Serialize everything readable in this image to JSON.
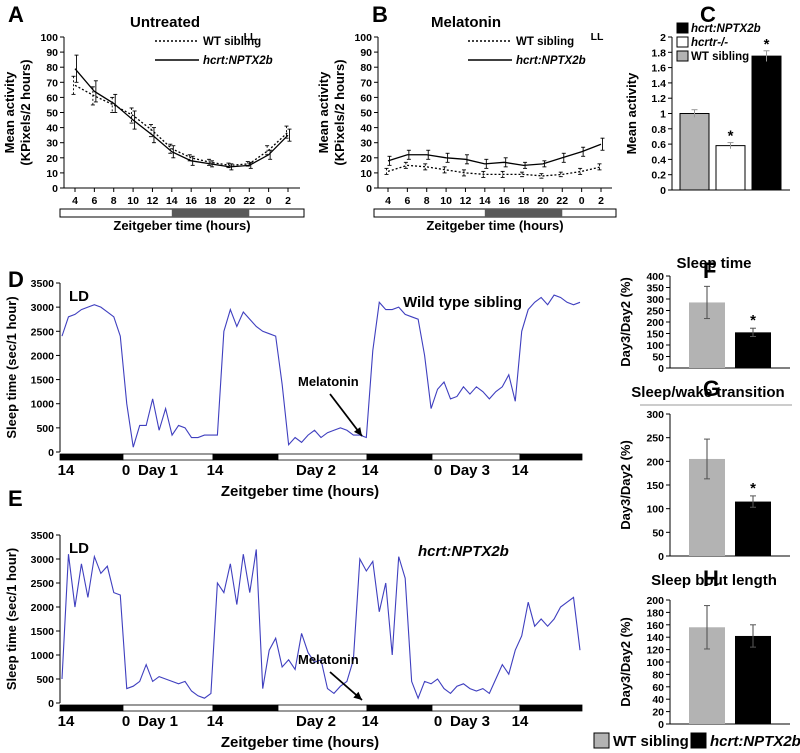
{
  "figure": {
    "panel_letters": [
      "A",
      "B",
      "C",
      "D",
      "E",
      "F",
      "G",
      "H"
    ],
    "bottom_legend": [
      {
        "label": "WT sibling",
        "color": "#b3b3b3"
      },
      {
        "label": "hcrt:NPTX2b",
        "color": "#000000"
      }
    ],
    "colors": {
      "wt_bar": "#b3b3b3",
      "mut_bar": "#000000",
      "trace": "#3f3fbf",
      "dark_bar": "#595959"
    }
  },
  "chart_data": [
    {
      "id": "A",
      "type": "line",
      "title": "Untreated",
      "condition": "LL",
      "xlabel": "Zeitgeber time (hours)",
      "ylabel": [
        "Mean activity",
        "(KPixels/2 hours)"
      ],
      "ylim": [
        0,
        100
      ],
      "yticks": [
        0,
        10,
        20,
        30,
        40,
        50,
        60,
        70,
        80,
        90,
        100
      ],
      "x": [
        "4",
        "6",
        "8",
        "10",
        "12",
        "14",
        "16",
        "18",
        "20",
        "22",
        "0",
        "2"
      ],
      "series": [
        {
          "name": "WT sibling",
          "style": "dotted",
          "values": [
            68,
            61,
            55,
            48,
            38,
            26,
            20,
            17,
            15,
            16,
            25,
            37
          ],
          "errors": [
            6,
            6,
            5,
            5,
            4,
            3,
            2,
            2,
            1.5,
            1.5,
            3,
            4
          ]
        },
        {
          "name": "hcrt:NPTX2b",
          "style": "solid",
          "values": [
            79,
            64,
            56,
            45,
            35,
            24,
            18,
            16,
            14,
            15,
            22,
            35
          ],
          "errors": [
            9,
            7,
            6,
            6,
            5,
            4,
            3,
            2,
            2,
            2,
            3,
            4
          ]
        }
      ],
      "shaded_interval": {
        "from": "14",
        "to": "22"
      }
    },
    {
      "id": "B",
      "type": "line",
      "title": "Melatonin",
      "condition": "LL",
      "xlabel": "Zeitgeber time (hours)",
      "ylabel": [
        "Mean activity",
        "(KPixels/2 hours)"
      ],
      "ylim": [
        0,
        100
      ],
      "yticks": [
        0,
        10,
        20,
        30,
        40,
        50,
        60,
        70,
        80,
        90,
        100
      ],
      "x": [
        "4",
        "6",
        "8",
        "10",
        "12",
        "14",
        "16",
        "18",
        "20",
        "22",
        "0",
        "2"
      ],
      "series": [
        {
          "name": "WT sibling",
          "style": "dotted",
          "values": [
            11,
            15,
            14,
            12,
            10,
            9,
            9,
            9,
            8,
            9,
            11,
            14
          ],
          "errors": [
            2,
            2,
            2,
            2,
            2,
            2,
            2,
            1.5,
            1.5,
            1.5,
            2,
            2
          ]
        },
        {
          "name": "hcrt:NPTX2b",
          "style": "solid",
          "values": [
            18,
            22,
            22,
            20,
            19,
            16,
            17,
            15,
            16,
            20,
            24,
            29
          ],
          "errors": [
            3,
            3,
            3,
            3,
            3,
            3,
            3,
            2,
            2,
            3,
            3,
            4
          ]
        }
      ],
      "shaded_interval": {
        "from": "14",
        "to": "22"
      }
    },
    {
      "id": "C",
      "type": "bar",
      "title": "",
      "ylabel": "Mean activity",
      "ylim": [
        0,
        2
      ],
      "yticks": [
        "0",
        "0.2",
        "0.4",
        "0.6",
        "0.8",
        "1",
        "1.2",
        "1.4",
        "1.6",
        "1.8",
        "2"
      ],
      "categories": [
        "WT sibling",
        "hcrtr-/-",
        "hcrt:NPTX2b"
      ],
      "values": [
        1.0,
        0.58,
        1.75
      ],
      "errors": [
        0.05,
        0.04,
        0.07
      ],
      "significant": [
        false,
        true,
        true
      ],
      "significance_label": "*",
      "colors": [
        "#b3b3b3",
        "#ffffff",
        "#000000"
      ],
      "legend_order": [
        "hcrt:NPTX2b",
        "hcrtr-/-",
        "WT sibling"
      ]
    },
    {
      "id": "D",
      "type": "line",
      "title": "Wild type sibling",
      "condition": "LD",
      "xlabel": "Zeitgeber time (hours)",
      "ylabel": "Sleep time (sec/1 hour)",
      "ylim": [
        0,
        3500
      ],
      "yticks": [
        0,
        500,
        1000,
        1500,
        2000,
        2500,
        3000,
        3500
      ],
      "xtick_labels": [
        "14",
        "0",
        "Day 1",
        "14",
        "Day 2",
        "14",
        "0",
        "Day 3",
        "14"
      ],
      "annotation": "Melatonin",
      "values": [
        2400,
        2800,
        2850,
        2950,
        3000,
        3050,
        3000,
        2900,
        2800,
        2400,
        1000,
        100,
        550,
        550,
        1100,
        450,
        900,
        350,
        550,
        500,
        300,
        300,
        350,
        350,
        350,
        2500,
        2950,
        2600,
        2900,
        2750,
        2600,
        2500,
        2450,
        2400,
        1400,
        150,
        300,
        200,
        350,
        450,
        300,
        400,
        450,
        500,
        450,
        350,
        350,
        300,
        2100,
        3100,
        2950,
        2950,
        3000,
        2850,
        2800,
        2750,
        2000,
        900,
        1300,
        1450,
        1100,
        1150,
        1350,
        1200,
        1350,
        1250,
        1100,
        1250,
        1350,
        1600,
        1050,
        2500,
        2950,
        3100,
        3200,
        3050,
        3250,
        3200,
        3100,
        3050,
        3100
      ]
    },
    {
      "id": "E",
      "type": "line",
      "title": "hcrt:NPTX2b",
      "condition": "LD",
      "xlabel": "Zeitgeber time (hours)",
      "ylabel": "Sleep time (sec/1 hour)",
      "ylim": [
        0,
        3500
      ],
      "yticks": [
        0,
        500,
        1000,
        1500,
        2000,
        2500,
        3000,
        3500
      ],
      "xtick_labels": [
        "14",
        "0",
        "Day 1",
        "14",
        "Day 2",
        "14",
        "0",
        "Day 3",
        "14"
      ],
      "annotation": "Melatonin",
      "values": [
        500,
        3100,
        2000,
        2900,
        2200,
        3050,
        2700,
        2850,
        2300,
        2250,
        300,
        350,
        450,
        800,
        450,
        550,
        500,
        450,
        400,
        450,
        250,
        150,
        100,
        200,
        2500,
        2300,
        2900,
        2050,
        3100,
        2300,
        3200,
        300,
        1100,
        1350,
        750,
        900,
        700,
        1450,
        1050,
        850,
        900,
        300,
        200,
        350,
        450,
        900,
        3000,
        2750,
        2950,
        1900,
        2500,
        1000,
        3050,
        2600,
        450,
        100,
        450,
        400,
        500,
        300,
        200,
        350,
        400,
        300,
        250,
        300,
        200,
        500,
        800,
        600,
        1100,
        1400,
        2100,
        1600,
        1750,
        1600,
        1750,
        2000,
        2100,
        2200,
        1100
      ]
    },
    {
      "id": "F",
      "type": "bar",
      "title": "Sleep time",
      "ylabel": "Day3/Day2 (%)",
      "ylim": [
        0,
        400
      ],
      "yticks": [
        0,
        50,
        100,
        150,
        200,
        250,
        300,
        350,
        400
      ],
      "categories": [
        "WT sibling",
        "hcrt:NPTX2b"
      ],
      "values": [
        285,
        155
      ],
      "errors": [
        70,
        18
      ],
      "significant": [
        false,
        true
      ],
      "significance_label": "*"
    },
    {
      "id": "G",
      "type": "bar",
      "title": "Sleep/wake transition",
      "ylabel": "Day3/Day2 (%)",
      "ylim": [
        0,
        300
      ],
      "yticks": [
        0,
        50,
        100,
        150,
        200,
        250,
        300
      ],
      "categories": [
        "WT sibling",
        "hcrt:NPTX2b"
      ],
      "values": [
        205,
        115
      ],
      "errors": [
        42,
        12
      ],
      "significant": [
        false,
        true
      ],
      "significance_label": "*"
    },
    {
      "id": "H",
      "type": "bar",
      "title": "Sleep bout length",
      "ylabel": "Day3/Day2 (%)",
      "ylim": [
        0,
        200
      ],
      "yticks": [
        0,
        20,
        40,
        60,
        80,
        100,
        120,
        140,
        160,
        180,
        200
      ],
      "categories": [
        "WT sibling",
        "hcrt:NPTX2b"
      ],
      "values": [
        156,
        142
      ],
      "errors": [
        35,
        18
      ],
      "significant": [
        false,
        false
      ],
      "significance_label": "*"
    }
  ]
}
